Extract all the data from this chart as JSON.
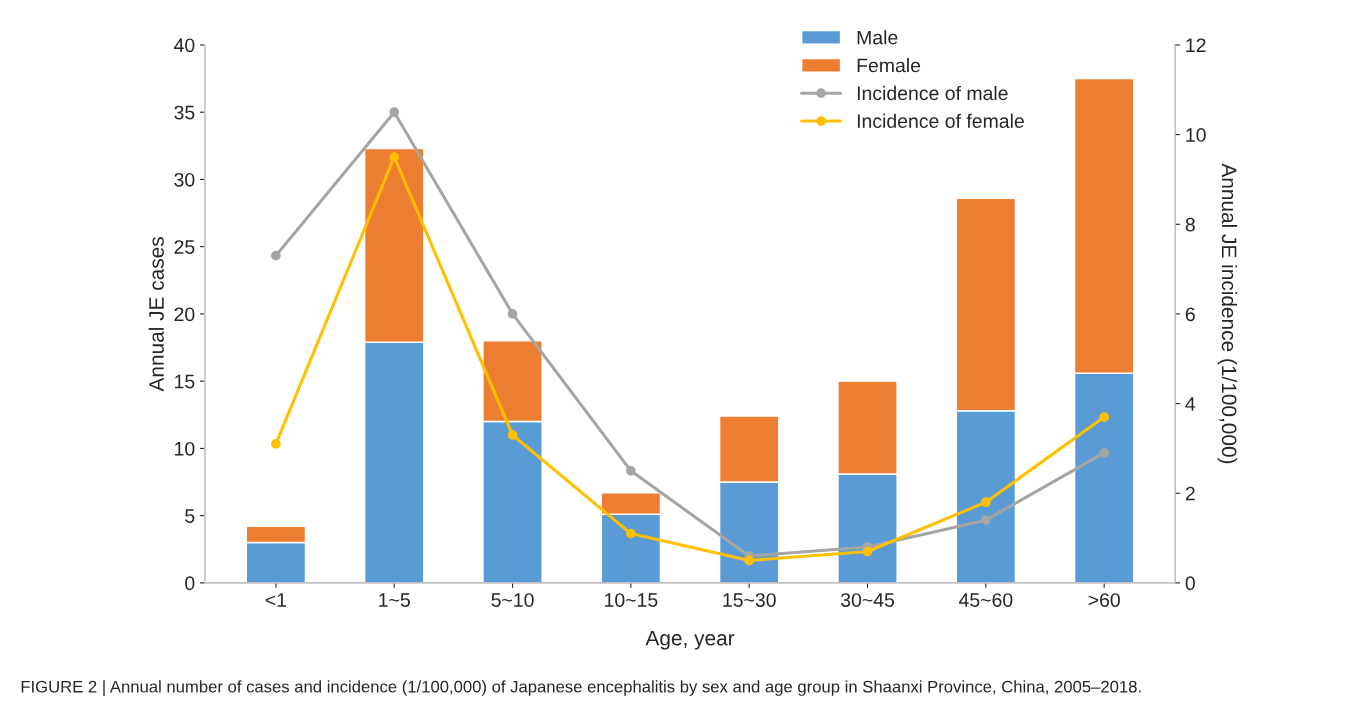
{
  "chart_data": {
    "type": "bar",
    "stacked": true,
    "xlabel": "Age, year",
    "ylabel": "Annual JE cases",
    "y2label": "Annual JE incidence (1/100,000)",
    "categories": [
      "<1",
      "1~5",
      "5~10",
      "10~15",
      "15~30",
      "30~45",
      "45~60",
      ">60"
    ],
    "series": [
      {
        "name": "Male",
        "color": "#5b9bd5",
        "values": [
          3.0,
          17.9,
          12.0,
          5.1,
          7.5,
          8.1,
          12.8,
          15.6
        ]
      },
      {
        "name": "Female",
        "color": "#ed7d31",
        "values": [
          1.2,
          14.4,
          6.0,
          1.6,
          4.9,
          6.9,
          15.8,
          21.9
        ]
      },
      {
        "name": "Incidence of male",
        "type": "line",
        "axis": "y2",
        "color": "#a5a5a5",
        "values": [
          7.3,
          10.5,
          6.0,
          2.5,
          0.6,
          0.8,
          1.4,
          2.9
        ]
      },
      {
        "name": "Incidence of female",
        "type": "line",
        "axis": "y2",
        "color": "#ffc000",
        "values": [
          3.1,
          9.5,
          3.3,
          1.1,
          0.5,
          0.7,
          1.8,
          3.7
        ]
      }
    ],
    "ylim": [
      0,
      40
    ],
    "yticks": [
      0,
      5,
      10,
      15,
      20,
      25,
      30,
      35,
      40
    ],
    "y2lim": [
      0,
      12
    ],
    "y2ticks": [
      0,
      2,
      4,
      6,
      8,
      10,
      12
    ],
    "marker": "circle",
    "line_style": "solid",
    "grid": false,
    "legend": "top right",
    "annotations": [
      "FIGURE 2 | Annual number of cases and incidence (1/100,000) of Japanese encephalitis by sex and age group in Shaanxi Province, China, 2005–2018."
    ]
  }
}
